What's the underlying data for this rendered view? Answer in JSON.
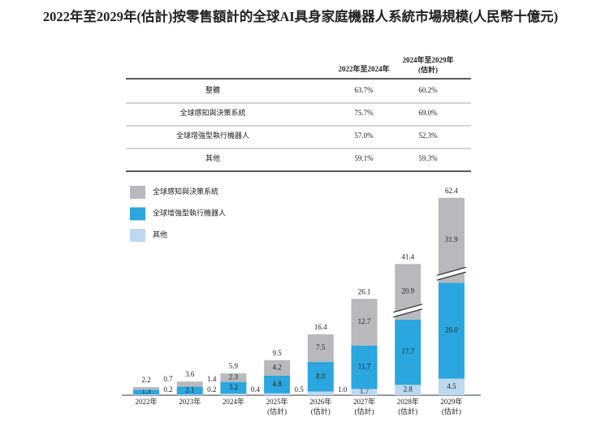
{
  "title": "2022年至2029年(估計)按零售額計的全球AI具身家庭機器人系統市場規模(人民幣十億元)",
  "table": {
    "header": [
      "2022年至2024年",
      [
        "2024年至2029年",
        "(估計)"
      ]
    ],
    "rows": [
      [
        "整體",
        "63.7%",
        "60.2%"
      ],
      [
        "全球感知與決策系統",
        "75.7%",
        "69.0%"
      ],
      [
        "全球增強型執行機器人",
        "57.0%",
        "52.3%"
      ],
      [
        "其他",
        "59.1%",
        "59.3%"
      ]
    ]
  },
  "chart_data": {
    "type": "stacked_bar",
    "categories": [
      [
        "2022年"
      ],
      [
        "2023年"
      ],
      [
        "2024年"
      ],
      [
        "2025年",
        "(估計)"
      ],
      [
        "2026年",
        "(估計)"
      ],
      [
        "2027年",
        "(估計)"
      ],
      [
        "2028年",
        "(估計)"
      ],
      [
        "2029年",
        "(估計)"
      ]
    ],
    "series": [
      {
        "name": "全球感知與決策系統",
        "color": "#b8b9bc",
        "values": [
          0.7,
          1.4,
          2.3,
          4.2,
          7.5,
          12.7,
          20.9,
          31.9
        ],
        "value_labels": [
          "0.7",
          "1.4",
          "2.3",
          "4.2",
          "7.5",
          "12.7",
          "20.9",
          "31.9"
        ]
      },
      {
        "name": "全球增強型執行機器人",
        "color": "#2ba6de",
        "values": [
          1.3,
          2.1,
          3.2,
          4.8,
          8.0,
          11.7,
          17.7,
          26.0
        ],
        "value_labels": [
          "1.3",
          "2.1",
          "3.2",
          "4.8",
          "8.0",
          "11.7",
          "17.7",
          "26.0"
        ]
      },
      {
        "name": "其他",
        "color": "#bdd8ef",
        "values": [
          0.2,
          0.2,
          0.4,
          0.5,
          1.0,
          1.7,
          2.8,
          4.5
        ],
        "value_labels": [
          "0.2",
          "0.2",
          "0.4",
          "0.5",
          "1.0",
          "1.7",
          "2.8",
          "4.5"
        ]
      }
    ],
    "totals": [
      2.2,
      3.6,
      5.9,
      9.5,
      16.4,
      26.1,
      41.4,
      62.4
    ]
  }
}
